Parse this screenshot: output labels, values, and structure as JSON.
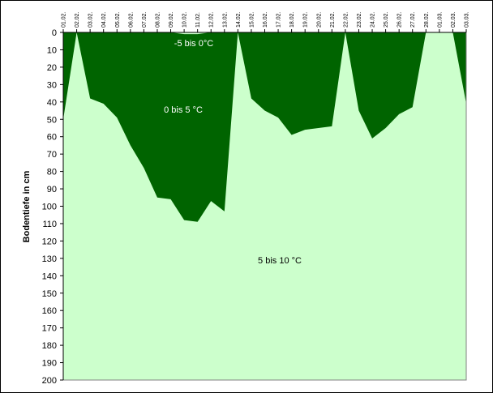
{
  "chart_data": {
    "type": "area",
    "title": "",
    "xlabel": "",
    "ylabel": "Bodentiefe in cm",
    "x": [
      "01.02.",
      "02.02.",
      "03.02.",
      "04.02.",
      "05.02.",
      "06.02.",
      "07.02.",
      "08.02.",
      "09.02.",
      "10.02.",
      "11.02.",
      "12.02.",
      "13.02.",
      "14.02.",
      "15.02.",
      "16.02.",
      "17.02.",
      "18.02.",
      "19.02.",
      "20.02.",
      "21.02.",
      "22.02.",
      "23.02.",
      "24.02.",
      "25.02.",
      "26.02.",
      "27.02.",
      "28.02.",
      "01.03.",
      "02.03.",
      "03.03."
    ],
    "ylim": [
      0,
      200
    ],
    "y_inverted": true,
    "y_ticks": [
      0,
      10,
      20,
      30,
      40,
      50,
      60,
      70,
      80,
      90,
      100,
      110,
      120,
      130,
      140,
      150,
      160,
      170,
      180,
      190,
      200
    ],
    "grid": false,
    "series": [
      {
        "name": "-5 bis 0°C",
        "values": [
          0,
          0,
          0,
          0,
          0,
          0,
          0,
          0,
          0,
          1,
          1,
          0,
          0,
          0,
          0,
          0,
          0,
          0,
          0,
          0,
          0,
          0,
          0,
          0,
          0,
          0,
          0,
          0,
          0,
          0,
          0
        ]
      },
      {
        "name": "0 bis 5 °C",
        "values": [
          50,
          0,
          38,
          41,
          49,
          65,
          78,
          95,
          96,
          108,
          109,
          97,
          103,
          0,
          38,
          45,
          49,
          59,
          56,
          55,
          54,
          0,
          45,
          61,
          55,
          47,
          43,
          0,
          0,
          0,
          41
        ]
      },
      {
        "name": "5 bis 10 °C",
        "values": [
          200,
          200,
          200,
          200,
          200,
          200,
          200,
          200,
          200,
          200,
          200,
          200,
          200,
          200,
          200,
          200,
          200,
          200,
          200,
          200,
          200,
          200,
          200,
          200,
          200,
          200,
          200,
          200,
          200,
          200,
          200
        ]
      }
    ],
    "colors": {
      "cold_band": "#006400",
      "warm_band": "#ccffcc",
      "frost_label": "#ffffff",
      "band_label": "#000000"
    }
  }
}
